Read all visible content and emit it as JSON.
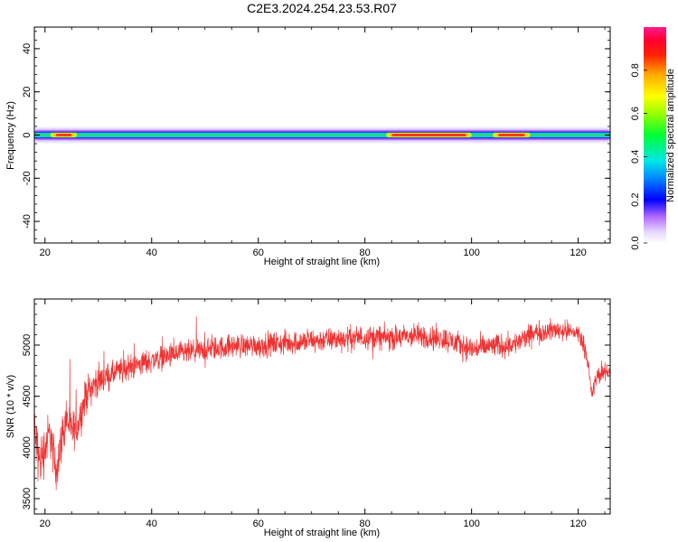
{
  "page": {
    "title": "C2E3.2024.254.23.53.R07"
  },
  "chart_data": [
    {
      "type": "heatmap",
      "xlabel": "Height of straight line (km)",
      "ylabel": "Frequency (Hz)",
      "xlim": [
        18,
        126
      ],
      "ylim": [
        -50,
        50
      ],
      "xticks": [
        20,
        40,
        60,
        80,
        100,
        120
      ],
      "yticks": [
        -40,
        -20,
        0,
        20,
        40
      ],
      "grid": false,
      "colorbar": {
        "label": "Normalized spectral amplitude",
        "range": [
          0,
          1
        ],
        "ticks": [
          "0.0",
          "0.2",
          "0.4",
          "0.6",
          "0.8"
        ]
      },
      "band": {
        "center_hz": 0,
        "peak_regions_km": [
          [
            84,
            100
          ],
          [
            21,
            26
          ],
          [
            104,
            111
          ]
        ]
      }
    },
    {
      "type": "line",
      "xlabel": "Height of straight line (km)",
      "ylabel": "SNR (10 * v/v)",
      "xlim": [
        18,
        126
      ],
      "ylim": [
        3350,
        5450
      ],
      "xticks": [
        20,
        40,
        60,
        80,
        100,
        120
      ],
      "yticks": [
        3500,
        4000,
        4500,
        5000
      ],
      "grid": false,
      "series_color": "#ee3333",
      "trend_points": {
        "x": [
          18,
          19,
          20,
          21,
          22,
          23,
          24,
          25,
          26,
          28,
          30,
          34,
          38,
          42,
          46,
          50,
          55,
          60,
          65,
          70,
          75,
          80,
          85,
          90,
          95,
          100,
          104,
          108,
          112,
          116,
          120,
          121.5,
          122.5,
          123.5,
          126
        ],
        "y": [
          4150,
          3850,
          4000,
          4150,
          3750,
          4050,
          4300,
          4150,
          4200,
          4550,
          4650,
          4750,
          4820,
          4880,
          4920,
          4950,
          4990,
          5000,
          5020,
          5040,
          5060,
          5080,
          5070,
          5090,
          5060,
          4960,
          4990,
          5010,
          5120,
          5150,
          5120,
          4950,
          4500,
          4700,
          4750
        ]
      },
      "noise_amplitude": [
        [
          18,
          400
        ],
        [
          26,
          280
        ],
        [
          32,
          180
        ],
        [
          50,
          170
        ],
        [
          80,
          170
        ],
        [
          100,
          180
        ],
        [
          120,
          140
        ],
        [
          126,
          120
        ]
      ]
    }
  ]
}
